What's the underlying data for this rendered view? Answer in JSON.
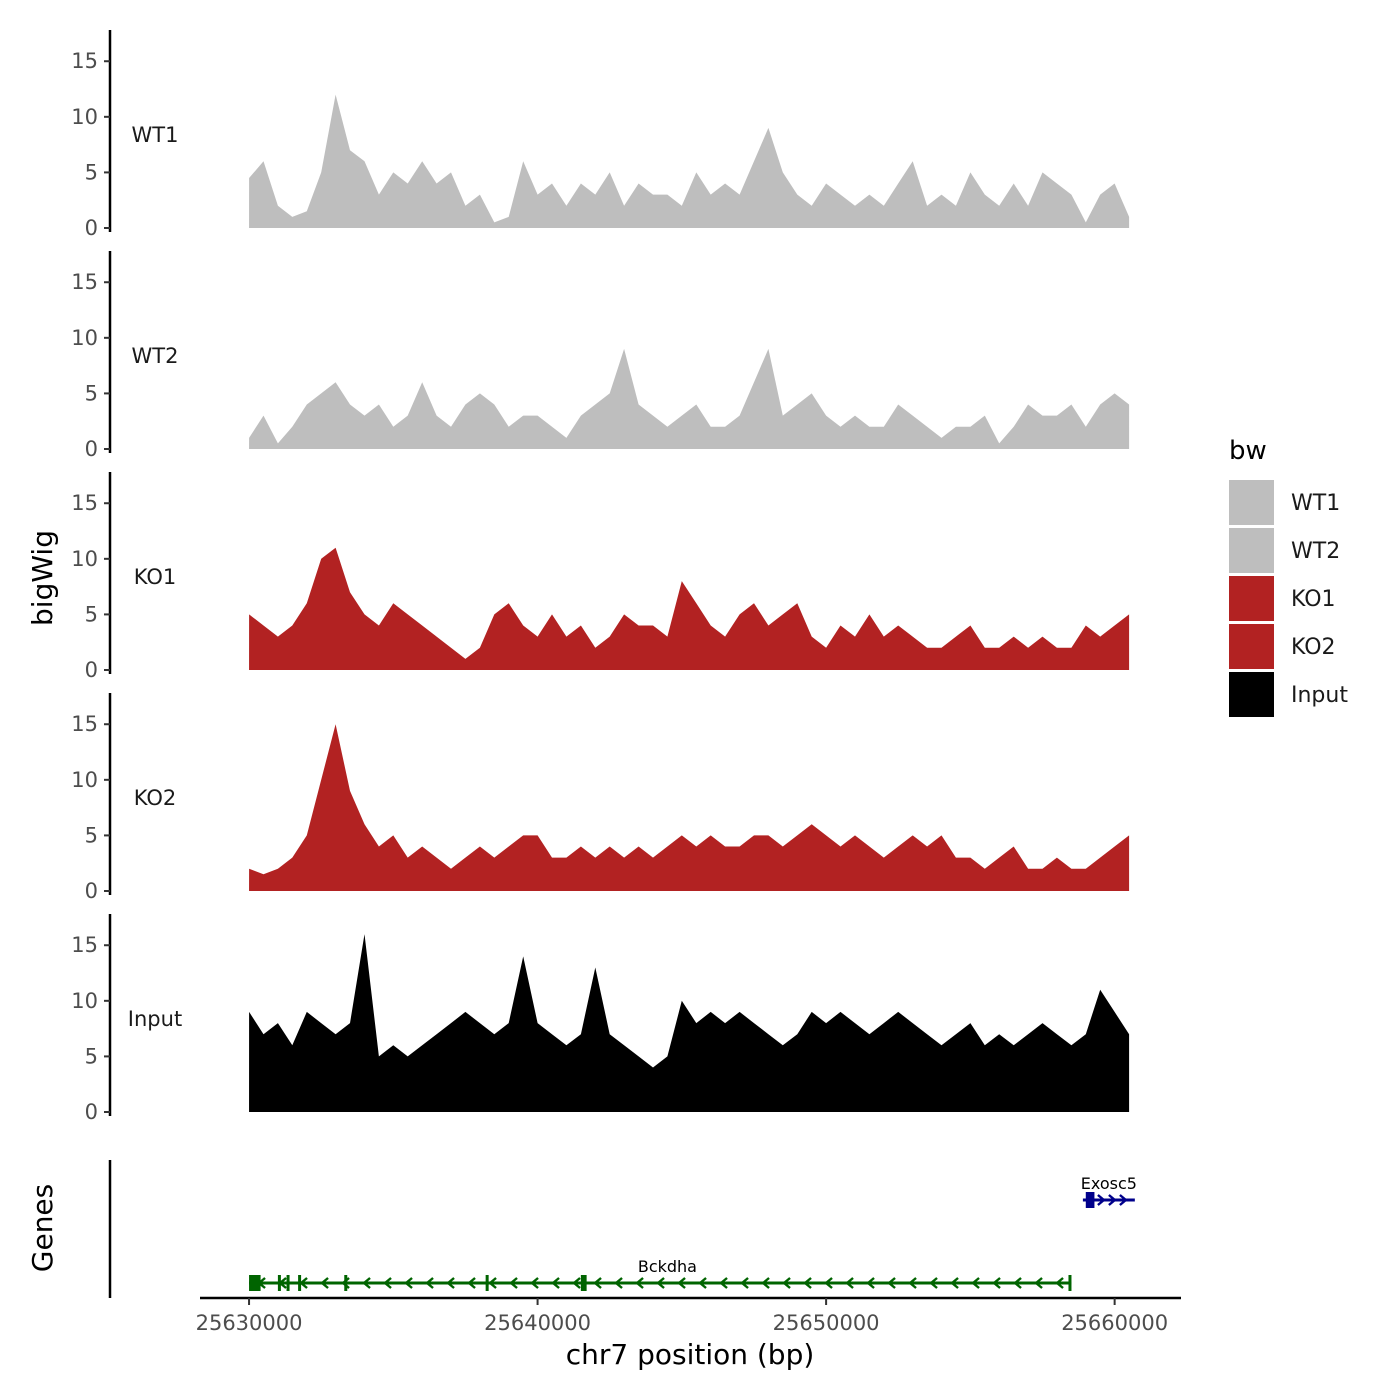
{
  "chart_data": {
    "type": "area",
    "title": "",
    "xlabel": "chr7 position (bp)",
    "ylabel": "bigWig",
    "genes_ylabel": "Genes",
    "xlim": [
      25628300,
      25662300
    ],
    "x_ticks": [
      25630000,
      25640000,
      25650000,
      25660000
    ],
    "x_tick_labels": [
      "25630000",
      "25640000",
      "25650000",
      "25660000"
    ],
    "ylim": [
      0,
      17
    ],
    "y_ticks": [
      0,
      5,
      10,
      15
    ],
    "y_tick_labels": [
      "0",
      "5",
      "10",
      "15"
    ],
    "legend": {
      "title": "bw",
      "position": "right",
      "entries": [
        {
          "label": "WT1",
          "color": "#bebebe"
        },
        {
          "label": "WT2",
          "color": "#bebebe"
        },
        {
          "label": "KO1",
          "color": "#b22222"
        },
        {
          "label": "KO2",
          "color": "#b22222"
        },
        {
          "label": "Input",
          "color": "#000000"
        }
      ]
    },
    "x": [
      25630000,
      25630500,
      25631000,
      25631500,
      25632000,
      25632500,
      25633000,
      25633500,
      25634000,
      25634500,
      25635000,
      25635500,
      25636000,
      25636500,
      25637000,
      25637500,
      25638000,
      25638500,
      25639000,
      25639500,
      25640000,
      25640500,
      25641000,
      25641500,
      25642000,
      25642500,
      25643000,
      25643500,
      25644000,
      25644500,
      25645000,
      25645500,
      25646000,
      25646500,
      25647000,
      25647500,
      25648000,
      25648500,
      25649000,
      25649500,
      25650000,
      25650500,
      25651000,
      25651500,
      25652000,
      25652500,
      25653000,
      25653500,
      25654000,
      25654500,
      25655000,
      25655500,
      25656000,
      25656500,
      25657000,
      25657500,
      25658000,
      25658500,
      25659000,
      25659500,
      25660000,
      25660500
    ],
    "series": [
      {
        "name": "WT1",
        "color": "#bebebe",
        "values": [
          4.5,
          6,
          2,
          1,
          1.5,
          5,
          12,
          7,
          6,
          3,
          5,
          4,
          6,
          4,
          5,
          2,
          3,
          0.5,
          1,
          6,
          3,
          4,
          2,
          4,
          3,
          5,
          2,
          4,
          3,
          3,
          2,
          5,
          3,
          4,
          3,
          6,
          9,
          5,
          3,
          2,
          4,
          3,
          2,
          3,
          2,
          4,
          6,
          2,
          3,
          2,
          5,
          3,
          2,
          4,
          2,
          5,
          4,
          3,
          0.5,
          3,
          4,
          1
        ]
      },
      {
        "name": "WT2",
        "color": "#bebebe",
        "values": [
          1,
          3,
          0.5,
          2,
          4,
          5,
          6,
          4,
          3,
          4,
          2,
          3,
          6,
          3,
          2,
          4,
          5,
          4,
          2,
          3,
          3,
          2,
          1,
          3,
          4,
          5,
          9,
          4,
          3,
          2,
          3,
          4,
          2,
          2,
          3,
          6,
          9,
          3,
          4,
          5,
          3,
          2,
          3,
          2,
          2,
          4,
          3,
          2,
          1,
          2,
          2,
          3,
          0.5,
          2,
          4,
          3,
          3,
          4,
          2,
          4,
          5,
          4
        ]
      },
      {
        "name": "KO1",
        "color": "#b22222",
        "values": [
          5,
          4,
          3,
          4,
          6,
          10,
          11,
          7,
          5,
          4,
          6,
          5,
          4,
          3,
          2,
          1,
          2,
          5,
          6,
          4,
          3,
          5,
          3,
          4,
          2,
          3,
          5,
          4,
          4,
          3,
          8,
          6,
          4,
          3,
          5,
          6,
          4,
          5,
          6,
          3,
          2,
          4,
          3,
          5,
          3,
          4,
          3,
          2,
          2,
          3,
          4,
          2,
          2,
          3,
          2,
          3,
          2,
          2,
          4,
          3,
          4,
          5
        ]
      },
      {
        "name": "KO2",
        "color": "#b22222",
        "values": [
          2,
          1.5,
          2,
          3,
          5,
          10,
          15,
          9,
          6,
          4,
          5,
          3,
          4,
          3,
          2,
          3,
          4,
          3,
          4,
          5,
          5,
          3,
          3,
          4,
          3,
          4,
          3,
          4,
          3,
          4,
          5,
          4,
          5,
          4,
          4,
          5,
          5,
          4,
          5,
          6,
          5,
          4,
          5,
          4,
          3,
          4,
          5,
          4,
          5,
          3,
          3,
          2,
          3,
          4,
          2,
          2,
          3,
          2,
          2,
          3,
          4,
          5
        ]
      },
      {
        "name": "Input",
        "color": "#000000",
        "values": [
          9,
          7,
          8,
          6,
          9,
          8,
          7,
          8,
          16,
          5,
          6,
          5,
          6,
          7,
          8,
          9,
          8,
          7,
          8,
          14,
          8,
          7,
          6,
          7,
          13,
          7,
          6,
          5,
          4,
          5,
          10,
          8,
          9,
          8,
          9,
          8,
          7,
          6,
          7,
          9,
          8,
          9,
          8,
          7,
          8,
          9,
          8,
          7,
          6,
          7,
          8,
          6,
          7,
          6,
          7,
          8,
          7,
          6,
          7,
          11,
          9,
          7
        ]
      }
    ],
    "genes": [
      {
        "name": "Bckdha",
        "color": "#006400",
        "start": 25630000,
        "end": 25658500,
        "strand": "-",
        "row": 2,
        "exons": [
          [
            25630000,
            25630400
          ],
          [
            25631000,
            25631100
          ],
          [
            25631300,
            25631400
          ],
          [
            25631700,
            25631800
          ],
          [
            25633300,
            25633400
          ],
          [
            25638200,
            25638300
          ],
          [
            25641500,
            25641700
          ],
          [
            25658400,
            25658500
          ]
        ]
      },
      {
        "name": "Exosc5",
        "color": "#00008b",
        "start": 25658900,
        "end": 25660700,
        "strand": "+",
        "row": 1,
        "exons": [
          [
            25659000,
            25659300
          ]
        ]
      }
    ]
  }
}
